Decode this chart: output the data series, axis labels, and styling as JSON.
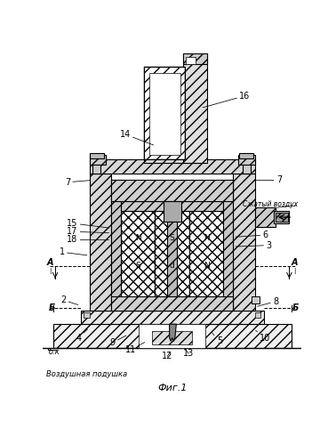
{
  "bg": "#ffffff",
  "fig_label": "Фиг.1",
  "compressed_air_label": "Сжатый воздух",
  "air_cushion_label": "Воздушная подушка",
  "bk_label": "б.к"
}
